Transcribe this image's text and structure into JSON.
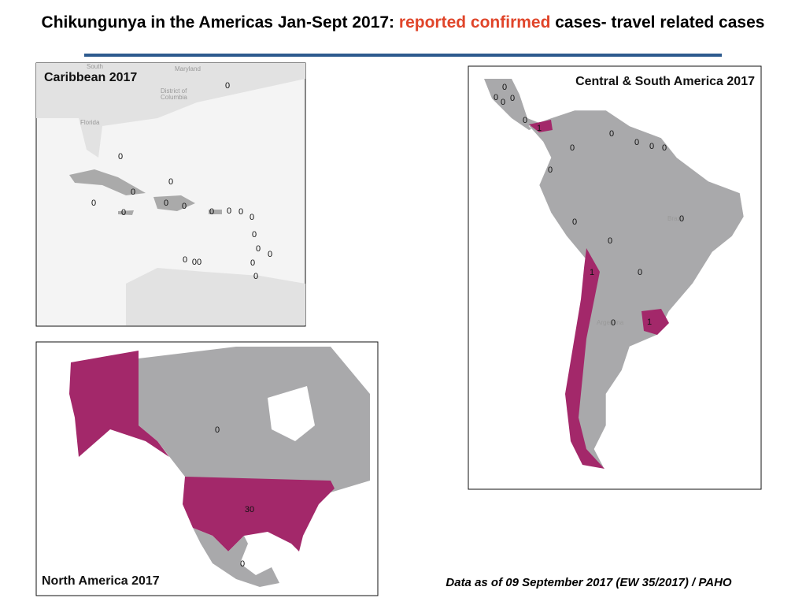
{
  "title": {
    "prefix": "Chikungunya in the Americas Jan-Sept 2017: ",
    "highlight": "reported confirmed",
    "suffix": " cases- travel related cases"
  },
  "maps": [
    {
      "title": "Caribbean 2017",
      "basemap_labels": [
        "South",
        "Maryland",
        "District of",
        "Columbia",
        "Florida"
      ],
      "case_labels": [
        "0",
        "0",
        "0",
        "0",
        "0",
        "0",
        "0",
        "0",
        "0",
        "0",
        "0",
        "0",
        "0",
        "0",
        "0",
        "0",
        "00",
        "0",
        "0"
      ]
    },
    {
      "title": "Central & South America  2017",
      "basemap_labels": [
        "Brazil",
        "Argentina"
      ],
      "case_labels": [
        "0",
        "0",
        "0",
        "0",
        "0",
        "1",
        "0",
        "0",
        "0",
        "0",
        "0",
        "0",
        "0",
        "0",
        "0",
        "1",
        "0",
        "0",
        "1"
      ]
    },
    {
      "title": "North America  2017",
      "basemap_labels": [],
      "case_labels": [
        "0",
        "30",
        "0"
      ]
    }
  ],
  "footnote": "Data as of 09 September 2017 (EW 35/2017) / PAHO"
}
